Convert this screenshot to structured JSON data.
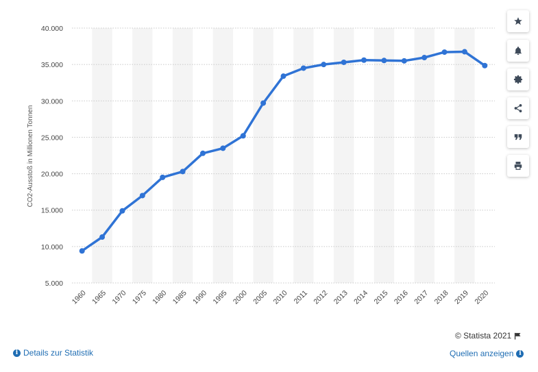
{
  "chart_data": {
    "type": "line",
    "ylabel": "CO2-Ausstoß in Millionen Tonnen",
    "ylim": [
      5000,
      40000
    ],
    "yticks": [
      5000,
      10000,
      15000,
      20000,
      25000,
      30000,
      35000,
      40000
    ],
    "ytick_labels": [
      "5.000",
      "10.000",
      "15.000",
      "20.000",
      "25.000",
      "30.000",
      "35.000",
      "40.000"
    ],
    "categories": [
      "1960",
      "1965",
      "1970",
      "1975",
      "1980",
      "1985",
      "1990",
      "1995",
      "2000",
      "2005",
      "2010",
      "2011",
      "2012",
      "2013",
      "2014",
      "2015",
      "2016",
      "2017",
      "2018",
      "2019",
      "2020"
    ],
    "series": [
      {
        "values": [
          9400,
          11300,
          14900,
          17000,
          19500,
          20300,
          22800,
          23500,
          25200,
          29700,
          33400,
          34500,
          35000,
          35300,
          35600,
          35550,
          35500,
          35950,
          36700,
          36750,
          34850
        ],
        "color": "#2f73d5"
      }
    ],
    "grid": true,
    "band_color": "#f4f4f4"
  },
  "sidebar": {
    "buttons": [
      {
        "icon": "star-icon"
      },
      {
        "icon": "bell-icon"
      },
      {
        "icon": "gear-icon"
      },
      {
        "icon": "share-icon"
      },
      {
        "icon": "quote-icon"
      },
      {
        "icon": "print-icon"
      }
    ]
  },
  "footer": {
    "copyright": "© Statista 2021",
    "details_link": "Details zur Statistik",
    "sources_link": "Quellen anzeigen"
  }
}
